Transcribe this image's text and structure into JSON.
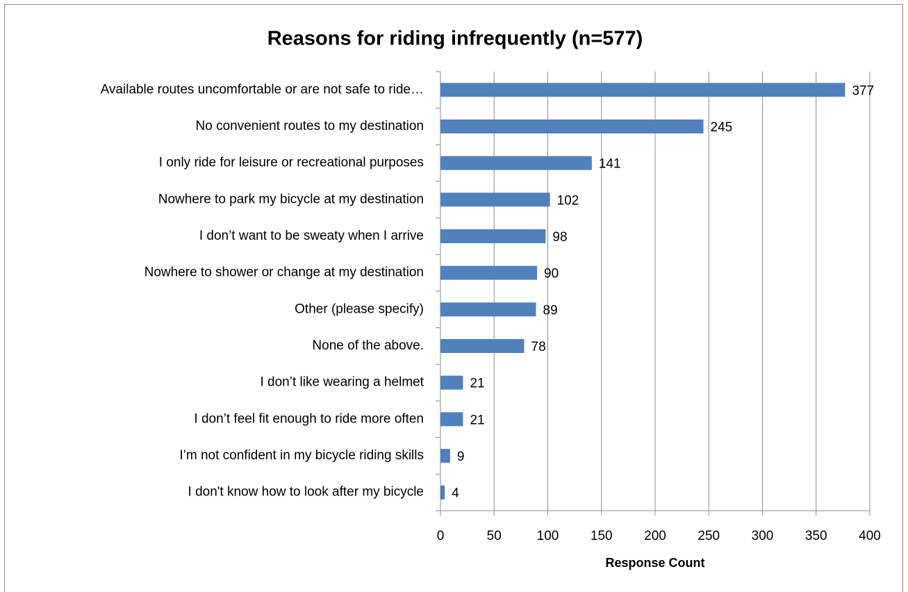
{
  "chart_data": {
    "type": "bar",
    "orientation": "horizontal",
    "title": "Reasons for riding infrequently (n=577)",
    "x_label": "Response Count",
    "categories": [
      "Available routes uncomfortable or are not safe to ride…",
      "No convenient routes to my destination",
      "I only ride for leisure or recreational purposes",
      "Nowhere to park my bicycle at my destination",
      "I don’t want to be sweaty when I arrive",
      "Nowhere to shower or change at my destination",
      "Other (please specify)",
      "None of the above.",
      "I don’t like wearing a helmet",
      "I don’t feel fit enough to ride more often",
      "I’m not confident in my bicycle riding skills",
      "I don't know how to look after my bicycle"
    ],
    "values": [
      377,
      245,
      141,
      102,
      98,
      90,
      89,
      78,
      21,
      21,
      9,
      4
    ],
    "color": "#4f81bd",
    "xlim": [
      0,
      400
    ],
    "xticks": [
      0,
      50,
      100,
      150,
      200,
      250,
      300,
      350,
      400
    ],
    "grid": true
  }
}
